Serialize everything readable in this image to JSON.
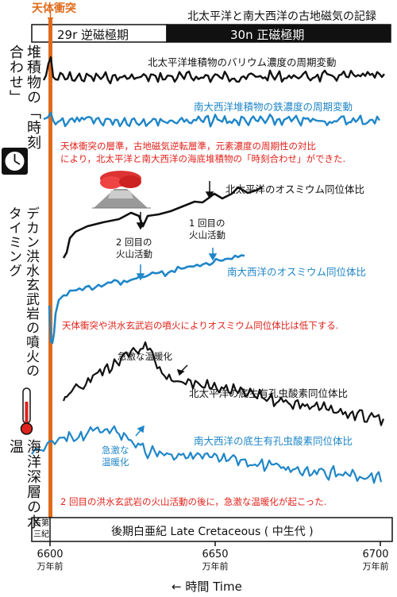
{
  "header": {
    "impact_label": "天体衝突",
    "record_title": "北太平洋と南大西洋の古地磁気の記録"
  },
  "chrons": {
    "reverse": "29r 逆磁極期",
    "normal": "30n 正磁極期"
  },
  "side_labels": {
    "sync": "堆積物の「時刻合わせ」",
    "deccan": "デカン洪水玄武岩の噴火のタイミング",
    "temp": "海洋深層の水温"
  },
  "series": {
    "np_barium": "北太平洋堆積物のバリウム濃度の周期変動",
    "sa_iron": "南大西洋堆積物の鉄濃度の周期変動",
    "np_osmium": "北太平洋のオスミウム同位体比",
    "sa_osmium": "南大西洋のオスミウム同位体比",
    "np_benthic": "北太平洋の底生有孔虫酸素同位体比",
    "sa_benthic": "南大西洋の底生有孔虫酸素同位体比"
  },
  "notes": {
    "sync_note_line1": "天体衝突の層準，古地磁気逆転層準，元素濃度の周期性の対比",
    "sync_note_line2": "により，北太平洋と南大西洋の海底堆積物の「時刻合わせ」ができた.",
    "eruption2_line1": "2 回目の",
    "eruption2_line2": "火山活動",
    "eruption1_line1": "1 回目の",
    "eruption1_line2": "火山活動",
    "osmium_note": "天体衝突や洪水玄武岩の噴火によりオスミウム同位体比は低下する.",
    "warming_black": "急激な温暖化",
    "warming_blue_line1": "急激な",
    "warming_blue_line2": "温暖化",
    "warming_note": "2 回目の洪水玄武岩の火山活動の後に，急激な温暖化が起こった."
  },
  "timescale": {
    "paleogene_line1": "古第",
    "paleogene_line2": "三紀",
    "cretaceous": "後期白亜紀 Late Cretaceous ( 中生代 )",
    "ticks": [
      {
        "value": "6600",
        "unit": "万年前"
      },
      {
        "value": "6650",
        "unit": "万年前"
      },
      {
        "value": "6700",
        "unit": "万年前"
      }
    ],
    "axis_label": "← 時間 Time"
  },
  "icons": [
    "clock-icon",
    "volcano-icon",
    "thermometer-icon"
  ],
  "colors": {
    "impact": "#e06a1b",
    "north_pacific": "#111111",
    "south_atlantic": "#1f86c8",
    "note": "#e0221b"
  }
}
